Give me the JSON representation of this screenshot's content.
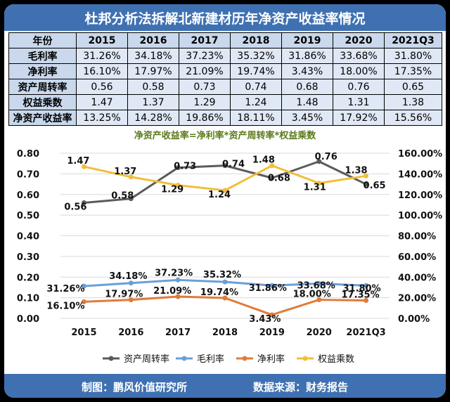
{
  "title": "杜邦分析法拆解北新建材历年净资产收益率情况",
  "table": {
    "header": [
      "年份",
      "2015",
      "2016",
      "2017",
      "2018",
      "2019",
      "2020",
      "2021Q3"
    ],
    "rows": [
      {
        "label": "毛利率",
        "values": [
          "31.26%",
          "34.18%",
          "37.23%",
          "35.32%",
          "31.86%",
          "33.68%",
          "31.80%"
        ]
      },
      {
        "label": "净利率",
        "values": [
          "16.10%",
          "17.97%",
          "21.09%",
          "19.74%",
          "3.43%",
          "18.00%",
          "17.35%"
        ]
      },
      {
        "label": "资产周转率",
        "values": [
          "0.56",
          "0.58",
          "0.73",
          "0.74",
          "0.68",
          "0.76",
          "0.65"
        ]
      },
      {
        "label": "权益乘数",
        "values": [
          "1.47",
          "1.37",
          "1.29",
          "1.24",
          "1.48",
          "1.31",
          "1.38"
        ]
      },
      {
        "label": "净资产收益率",
        "values": [
          "13.25%",
          "14.28%",
          "19.86%",
          "18.11%",
          "3.45%",
          "17.92%",
          "15.56%"
        ]
      }
    ]
  },
  "chart_data": {
    "type": "line",
    "title": "净资产收益率=净利率*资产周转率*权益乘数",
    "categories": [
      "2015",
      "2016",
      "2017",
      "2018",
      "2019",
      "2020",
      "2021Q3"
    ],
    "y_left": {
      "min": 0,
      "max": 0.8,
      "ticks": [
        "0.00",
        "0.10",
        "0.20",
        "0.30",
        "0.40",
        "0.50",
        "0.60",
        "0.70",
        "0.80"
      ]
    },
    "y_right": {
      "min": 0,
      "max": 160,
      "ticks": [
        "0.00%",
        "20.00%",
        "40.00%",
        "60.00%",
        "80.00%",
        "100.00%",
        "120.00%",
        "140.00%",
        "160.00%"
      ]
    },
    "series": [
      {
        "name": "资产周转率",
        "axis": "left",
        "color": "#5b5b5b",
        "values": [
          0.56,
          0.58,
          0.73,
          0.74,
          0.68,
          0.76,
          0.65
        ],
        "labels": [
          "0.56",
          "0.58",
          "0.73",
          "0.74",
          "0.68",
          "0.76",
          "0.65"
        ]
      },
      {
        "name": "毛利率",
        "axis": "right",
        "color": "#6a9fd8",
        "values": [
          31.26,
          34.18,
          37.23,
          35.32,
          31.86,
          33.68,
          31.8
        ],
        "labels": [
          "31.26%",
          "34.18%",
          "37.23%",
          "35.32%",
          "31.86%",
          "33.68%",
          "31.80%"
        ]
      },
      {
        "name": "净利率",
        "axis": "right",
        "color": "#e07b3a",
        "values": [
          16.1,
          17.97,
          21.09,
          19.74,
          3.43,
          18.0,
          17.35
        ],
        "labels": [
          "16.10%",
          "17.97%",
          "21.09%",
          "19.74%",
          "3.43%",
          "18.00%",
          "17.35%"
        ]
      },
      {
        "name": "权益乘数",
        "axis": "right_scaled",
        "color": "#f2be3a",
        "values": [
          1.47,
          1.37,
          1.29,
          1.24,
          1.48,
          1.31,
          1.38
        ],
        "labels": [
          "1.47",
          "1.37",
          "1.29",
          "1.24",
          "1.48",
          "1.31",
          "1.38"
        ]
      }
    ],
    "legend_position": "bottom"
  },
  "footer": {
    "credit": "制图：鹏风价值研究所",
    "source": "数据来源：财务报告"
  }
}
